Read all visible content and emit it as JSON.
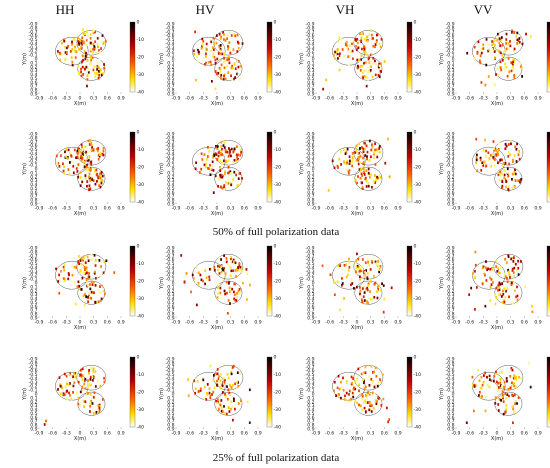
{
  "column_headers": [
    "HH",
    "HV",
    "VH",
    "VV"
  ],
  "captions": [
    "50% of  full polarization data",
    "25% of  full polarization data"
  ],
  "chart_data": {
    "type": "scatter",
    "grid": {
      "rows": 4,
      "cols": 4
    },
    "row_groups": [
      {
        "rows": [
          0
        ],
        "caption": ""
      },
      {
        "rows": [
          1,
          2
        ],
        "caption": "50% of  full polarization data"
      },
      {
        "rows": [
          3
        ],
        "caption": "25% of  full polarization data"
      }
    ],
    "xlabel": "X(m)",
    "ylabel": "Y(m)",
    "xlim": [
      -0.9,
      0.9
    ],
    "ylim": [
      -0.9,
      0.9
    ],
    "y_inverted": true,
    "xticks": [
      -0.9,
      -0.6,
      -0.3,
      0,
      0.3,
      0.6,
      0.9
    ],
    "yticks": [
      -0.9,
      -0.8,
      -0.7,
      -0.6,
      -0.5,
      -0.4,
      -0.3,
      -0.2,
      -0.1,
      0,
      0.1,
      0.2,
      0.3,
      0.4,
      0.5,
      0.6,
      0.7,
      0.8,
      0.9
    ],
    "colorbar": {
      "min": -40,
      "max": 0,
      "ticks": [
        0,
        -10,
        -20,
        -30,
        -40
      ],
      "colormap": "hot"
    },
    "circles": [
      {
        "cx": -0.18,
        "cy": -0.2,
        "r": 0.36
      },
      {
        "cx": 0.25,
        "cy": -0.42,
        "r": 0.32
      },
      {
        "cx": 0.25,
        "cy": 0.25,
        "r": 0.3
      }
    ],
    "panels": [
      {
        "row": 0,
        "col": 0,
        "name": "HH",
        "n_points": 150,
        "scatter_outside": 0.02
      },
      {
        "row": 0,
        "col": 1,
        "name": "HV",
        "n_points": 130,
        "scatter_outside": 0.04
      },
      {
        "row": 0,
        "col": 2,
        "name": "VH",
        "n_points": 130,
        "scatter_outside": 0.06
      },
      {
        "row": 0,
        "col": 3,
        "name": "VV",
        "n_points": 110,
        "scatter_outside": 0.12
      },
      {
        "row": 1,
        "col": 0,
        "name": "HH",
        "n_points": 150,
        "scatter_outside": 0.02
      },
      {
        "row": 1,
        "col": 1,
        "name": "HV",
        "n_points": 130,
        "scatter_outside": 0.04
      },
      {
        "row": 1,
        "col": 2,
        "name": "VH",
        "n_points": 130,
        "scatter_outside": 0.06
      },
      {
        "row": 1,
        "col": 3,
        "name": "VV",
        "n_points": 120,
        "scatter_outside": 0.05
      },
      {
        "row": 2,
        "col": 0,
        "name": "HH",
        "n_points": 110,
        "scatter_outside": 0.1
      },
      {
        "row": 2,
        "col": 1,
        "name": "HV",
        "n_points": 110,
        "scatter_outside": 0.18
      },
      {
        "row": 2,
        "col": 2,
        "name": "VH",
        "n_points": 110,
        "scatter_outside": 0.2
      },
      {
        "row": 2,
        "col": 3,
        "name": "VV",
        "n_points": 110,
        "scatter_outside": 0.15
      },
      {
        "row": 3,
        "col": 0,
        "name": "HH",
        "n_points": 110,
        "scatter_outside": 0.04
      },
      {
        "row": 3,
        "col": 1,
        "name": "HV",
        "n_points": 110,
        "scatter_outside": 0.08
      },
      {
        "row": 3,
        "col": 2,
        "name": "VH",
        "n_points": 110,
        "scatter_outside": 0.1
      },
      {
        "row": 3,
        "col": 3,
        "name": "VV",
        "n_points": 110,
        "scatter_outside": 0.08
      }
    ]
  }
}
